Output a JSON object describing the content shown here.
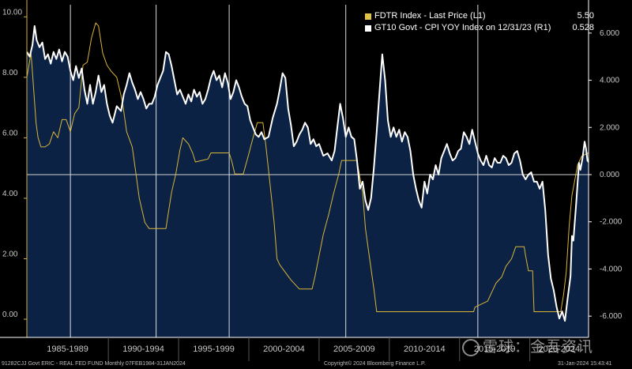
{
  "chart_data": {
    "type": "line",
    "legend": [
      {
        "name": "FDTR Index - Last Price (L1)",
        "value": "5.50",
        "color": "#e0c14a"
      },
      {
        "name": "GT10 Govt - CPI YOY Index on 12/31/23 (R1)",
        "value": "0.528",
        "color": "#ffffff"
      }
    ],
    "left_axis": {
      "ticks": [
        "0.00",
        "2.00",
        "4.00",
        "6.00",
        "8.00",
        "10.00"
      ],
      "ylim": [
        -0.6,
        10.4
      ]
    },
    "right_axis": {
      "ticks": [
        "-6.000",
        "-4.000",
        "-2.000",
        "0.000",
        "2.000",
        "4.000",
        "6.000"
      ],
      "ylim": [
        -6.9,
        7.2
      ]
    },
    "xlim": [
      1984.1,
      2024.08
    ],
    "period_labels": [
      "1985-1989",
      "1990-1994",
      "1995-1999",
      "2000-2004",
      "2005-2009",
      "2010-2014",
      "2015-2019",
      "2020-2024"
    ],
    "period_boundaries": [
      1987.2,
      1993.3,
      1998.5,
      2006.8,
      2016.2
    ],
    "zero_line_right": 0,
    "series": [
      {
        "name": "FDTR Index - Last Price (L1)",
        "axis": "left",
        "color": "#d9b53a",
        "points": [
          [
            1984.1,
            8.0
          ],
          [
            1984.4,
            8.8
          ],
          [
            1984.6,
            7.5
          ],
          [
            1984.75,
            6.5
          ],
          [
            1984.9,
            6.0
          ],
          [
            1985.1,
            5.7
          ],
          [
            1985.4,
            5.7
          ],
          [
            1985.7,
            5.8
          ],
          [
            1986.0,
            6.2
          ],
          [
            1986.3,
            6.0
          ],
          [
            1986.6,
            6.6
          ],
          [
            1986.9,
            6.6
          ],
          [
            1987.2,
            6.2
          ],
          [
            1987.5,
            6.8
          ],
          [
            1987.8,
            7.0
          ],
          [
            1988.1,
            8.4
          ],
          [
            1988.4,
            8.5
          ],
          [
            1988.7,
            9.3
          ],
          [
            1989.0,
            9.8
          ],
          [
            1989.2,
            9.7
          ],
          [
            1989.5,
            8.8
          ],
          [
            1989.8,
            8.4
          ],
          [
            1990.1,
            8.2
          ],
          [
            1990.5,
            8.0
          ],
          [
            1990.9,
            7.2
          ],
          [
            1991.2,
            6.2
          ],
          [
            1991.6,
            5.7
          ],
          [
            1991.9,
            4.7
          ],
          [
            1992.1,
            4.0
          ],
          [
            1992.5,
            3.2
          ],
          [
            1992.8,
            3.0
          ],
          [
            1993.5,
            3.0
          ],
          [
            1994.0,
            3.0
          ],
          [
            1994.1,
            3.3
          ],
          [
            1994.4,
            4.2
          ],
          [
            1994.7,
            4.8
          ],
          [
            1995.0,
            5.6
          ],
          [
            1995.2,
            6.0
          ],
          [
            1995.6,
            5.8
          ],
          [
            1995.9,
            5.5
          ],
          [
            1996.1,
            5.2
          ],
          [
            1997.0,
            5.3
          ],
          [
            1997.2,
            5.5
          ],
          [
            1998.5,
            5.5
          ],
          [
            1998.7,
            5.2
          ],
          [
            1998.9,
            4.8
          ],
          [
            1999.5,
            4.8
          ],
          [
            1999.8,
            5.3
          ],
          [
            2000.2,
            6.0
          ],
          [
            2000.5,
            6.5
          ],
          [
            2000.9,
            6.5
          ],
          [
            2001.1,
            5.8
          ],
          [
            2001.4,
            4.5
          ],
          [
            2001.7,
            3.2
          ],
          [
            2001.9,
            2.0
          ],
          [
            2002.1,
            1.8
          ],
          [
            2002.9,
            1.3
          ],
          [
            2003.5,
            1.0
          ],
          [
            2004.4,
            1.0
          ],
          [
            2004.6,
            1.4
          ],
          [
            2004.9,
            2.1
          ],
          [
            2005.2,
            2.8
          ],
          [
            2005.6,
            3.5
          ],
          [
            2005.9,
            4.1
          ],
          [
            2006.3,
            4.8
          ],
          [
            2006.5,
            5.25
          ],
          [
            2007.6,
            5.25
          ],
          [
            2007.8,
            4.7
          ],
          [
            2008.0,
            4.2
          ],
          [
            2008.2,
            3.0
          ],
          [
            2008.5,
            2.0
          ],
          [
            2008.8,
            1.0
          ],
          [
            2009.0,
            0.25
          ],
          [
            2015.9,
            0.25
          ],
          [
            2016.0,
            0.4
          ],
          [
            2016.9,
            0.6
          ],
          [
            2017.2,
            0.9
          ],
          [
            2017.5,
            1.2
          ],
          [
            2017.9,
            1.4
          ],
          [
            2018.2,
            1.75
          ],
          [
            2018.6,
            2.0
          ],
          [
            2018.9,
            2.4
          ],
          [
            2019.5,
            2.4
          ],
          [
            2019.6,
            2.1
          ],
          [
            2019.8,
            1.6
          ],
          [
            2020.1,
            1.6
          ],
          [
            2020.2,
            0.25
          ],
          [
            2022.1,
            0.25
          ],
          [
            2022.3,
            0.8
          ],
          [
            2022.5,
            1.6
          ],
          [
            2022.7,
            3.1
          ],
          [
            2022.9,
            4.1
          ],
          [
            2023.1,
            4.6
          ],
          [
            2023.3,
            5.1
          ],
          [
            2023.6,
            5.4
          ],
          [
            2024.08,
            5.5
          ]
        ]
      },
      {
        "name": "GT10 Govt - CPI YOY Index on 12/31/23 (R1)",
        "axis": "right",
        "color": "#ffffff",
        "points": [
          [
            1984.1,
            5.2
          ],
          [
            1984.3,
            5.0
          ],
          [
            1984.5,
            5.5
          ],
          [
            1984.65,
            6.3
          ],
          [
            1984.8,
            5.7
          ],
          [
            1985.0,
            5.4
          ],
          [
            1985.2,
            5.6
          ],
          [
            1985.4,
            4.9
          ],
          [
            1985.6,
            5.1
          ],
          [
            1985.8,
            4.7
          ],
          [
            1986.0,
            5.2
          ],
          [
            1986.2,
            4.9
          ],
          [
            1986.4,
            5.3
          ],
          [
            1986.6,
            4.8
          ],
          [
            1986.8,
            5.2
          ],
          [
            1987.0,
            5.0
          ],
          [
            1987.2,
            4.4
          ],
          [
            1987.4,
            4.0
          ],
          [
            1987.6,
            4.6
          ],
          [
            1987.8,
            4.1
          ],
          [
            1988.0,
            4.5
          ],
          [
            1988.2,
            3.6
          ],
          [
            1988.4,
            3.0
          ],
          [
            1988.6,
            3.8
          ],
          [
            1988.8,
            3.0
          ],
          [
            1989.0,
            3.5
          ],
          [
            1989.2,
            4.2
          ],
          [
            1989.4,
            3.5
          ],
          [
            1989.6,
            3.8
          ],
          [
            1989.8,
            3.0
          ],
          [
            1990.0,
            2.5
          ],
          [
            1990.2,
            2.2
          ],
          [
            1990.5,
            2.9
          ],
          [
            1990.8,
            2.7
          ],
          [
            1991.0,
            3.4
          ],
          [
            1991.2,
            3.8
          ],
          [
            1991.4,
            4.3
          ],
          [
            1991.6,
            3.9
          ],
          [
            1991.8,
            3.6
          ],
          [
            1992.0,
            3.2
          ],
          [
            1992.2,
            3.5
          ],
          [
            1992.4,
            3.2
          ],
          [
            1992.6,
            2.8
          ],
          [
            1992.8,
            3.0
          ],
          [
            1993.0,
            3.0
          ],
          [
            1993.2,
            3.3
          ],
          [
            1993.4,
            3.8
          ],
          [
            1993.6,
            4.1
          ],
          [
            1993.8,
            4.4
          ],
          [
            1994.0,
            5.2
          ],
          [
            1994.2,
            5.1
          ],
          [
            1994.4,
            4.6
          ],
          [
            1994.6,
            4.0
          ],
          [
            1994.8,
            3.4
          ],
          [
            1995.0,
            3.6
          ],
          [
            1995.2,
            3.3
          ],
          [
            1995.4,
            3.0
          ],
          [
            1995.6,
            3.4
          ],
          [
            1995.8,
            3.1
          ],
          [
            1996.0,
            3.6
          ],
          [
            1996.2,
            3.3
          ],
          [
            1996.4,
            3.5
          ],
          [
            1996.6,
            3.0
          ],
          [
            1996.8,
            3.2
          ],
          [
            1997.0,
            3.6
          ],
          [
            1997.2,
            4.1
          ],
          [
            1997.4,
            4.4
          ],
          [
            1997.6,
            4.0
          ],
          [
            1997.8,
            4.2
          ],
          [
            1998.0,
            3.7
          ],
          [
            1998.2,
            4.3
          ],
          [
            1998.4,
            3.9
          ],
          [
            1998.6,
            3.2
          ],
          [
            1998.8,
            3.5
          ],
          [
            1999.0,
            4.0
          ],
          [
            1999.2,
            3.7
          ],
          [
            1999.4,
            3.3
          ],
          [
            1999.6,
            3.0
          ],
          [
            1999.8,
            2.9
          ],
          [
            2000.0,
            2.3
          ],
          [
            2000.2,
            2.0
          ],
          [
            2000.4,
            1.7
          ],
          [
            2000.6,
            1.6
          ],
          [
            2000.8,
            1.8
          ],
          [
            2001.0,
            1.5
          ],
          [
            2001.3,
            1.6
          ],
          [
            2001.6,
            2.4
          ],
          [
            2001.9,
            3.0
          ],
          [
            2002.1,
            3.6
          ],
          [
            2002.3,
            4.3
          ],
          [
            2002.5,
            4.1
          ],
          [
            2002.7,
            2.8
          ],
          [
            2002.9,
            2.1
          ],
          [
            2003.1,
            1.2
          ],
          [
            2003.3,
            1.4
          ],
          [
            2003.5,
            1.7
          ],
          [
            2003.7,
            1.9
          ],
          [
            2003.9,
            2.2
          ],
          [
            2004.1,
            2.0
          ],
          [
            2004.3,
            1.3
          ],
          [
            2004.5,
            1.5
          ],
          [
            2004.7,
            1.2
          ],
          [
            2004.9,
            1.3
          ],
          [
            2005.2,
            0.8
          ],
          [
            2005.5,
            0.9
          ],
          [
            2005.8,
            0.6
          ],
          [
            2006.0,
            1.0
          ],
          [
            2006.2,
            2.0
          ],
          [
            2006.4,
            3.0
          ],
          [
            2006.6,
            2.4
          ],
          [
            2006.8,
            1.6
          ],
          [
            2007.0,
            2.0
          ],
          [
            2007.2,
            1.6
          ],
          [
            2007.4,
            1.5
          ],
          [
            2007.6,
            0.6
          ],
          [
            2007.8,
            -0.6
          ],
          [
            2008.0,
            -0.3
          ],
          [
            2008.2,
            -1.1
          ],
          [
            2008.4,
            -1.5
          ],
          [
            2008.6,
            -1.0
          ],
          [
            2008.8,
            0.3
          ],
          [
            2009.0,
            1.8
          ],
          [
            2009.2,
            3.5
          ],
          [
            2009.4,
            5.1
          ],
          [
            2009.6,
            4.0
          ],
          [
            2009.8,
            2.3
          ],
          [
            2010.0,
            1.6
          ],
          [
            2010.2,
            2.0
          ],
          [
            2010.4,
            1.6
          ],
          [
            2010.6,
            1.9
          ],
          [
            2010.8,
            1.4
          ],
          [
            2011.0,
            1.8
          ],
          [
            2011.2,
            1.6
          ],
          [
            2011.4,
            1.0
          ],
          [
            2011.6,
            0.0
          ],
          [
            2011.8,
            -0.6
          ],
          [
            2012.0,
            -1.1
          ],
          [
            2012.2,
            -1.4
          ],
          [
            2012.4,
            -0.3
          ],
          [
            2012.6,
            -0.8
          ],
          [
            2012.8,
            0.0
          ],
          [
            2013.0,
            -0.2
          ],
          [
            2013.2,
            0.4
          ],
          [
            2013.4,
            0.0
          ],
          [
            2013.6,
            0.7
          ],
          [
            2013.8,
            1.0
          ],
          [
            2014.0,
            1.3
          ],
          [
            2014.2,
            0.9
          ],
          [
            2014.4,
            0.6
          ],
          [
            2014.6,
            0.7
          ],
          [
            2014.8,
            1.0
          ],
          [
            2015.0,
            1.1
          ],
          [
            2015.2,
            1.8
          ],
          [
            2015.4,
            1.6
          ],
          [
            2015.6,
            1.3
          ],
          [
            2015.8,
            1.9
          ],
          [
            2016.0,
            1.4
          ],
          [
            2016.2,
            0.9
          ],
          [
            2016.4,
            0.6
          ],
          [
            2016.6,
            0.4
          ],
          [
            2016.8,
            0.8
          ],
          [
            2017.0,
            0.4
          ],
          [
            2017.2,
            0.3
          ],
          [
            2017.4,
            0.7
          ],
          [
            2017.6,
            0.5
          ],
          [
            2017.8,
            0.5
          ],
          [
            2018.0,
            0.8
          ],
          [
            2018.2,
            0.7
          ],
          [
            2018.4,
            0.4
          ],
          [
            2018.6,
            0.5
          ],
          [
            2018.8,
            0.9
          ],
          [
            2019.0,
            1.0
          ],
          [
            2019.2,
            0.6
          ],
          [
            2019.4,
            0.0
          ],
          [
            2019.6,
            -0.2
          ],
          [
            2019.8,
            0.0
          ],
          [
            2020.0,
            0.1
          ],
          [
            2020.2,
            -0.3
          ],
          [
            2020.4,
            -0.3
          ],
          [
            2020.6,
            -0.6
          ],
          [
            2020.8,
            -0.3
          ],
          [
            2021.0,
            -1.5
          ],
          [
            2021.2,
            -3.4
          ],
          [
            2021.4,
            -4.4
          ],
          [
            2021.6,
            -4.9
          ],
          [
            2021.8,
            -5.6
          ],
          [
            2022.0,
            -6.1
          ],
          [
            2022.2,
            -5.8
          ],
          [
            2022.4,
            -6.2
          ],
          [
            2022.6,
            -5.2
          ],
          [
            2022.8,
            -4.3
          ],
          [
            2022.9,
            -2.6
          ],
          [
            2023.0,
            -2.8
          ],
          [
            2023.2,
            -1.2
          ],
          [
            2023.4,
            0.5
          ],
          [
            2023.5,
            0.2
          ],
          [
            2023.65,
            0.7
          ],
          [
            2023.8,
            1.4
          ],
          [
            2023.9,
            1.1
          ],
          [
            2024.0,
            0.6
          ],
          [
            2024.08,
            0.53
          ]
        ]
      }
    ]
  },
  "footer": {
    "left": "91282CJJ Govt ERIC - REAL FED FUND  Monthly 07FEB1984-31JAN2024",
    "center": "Copyright© 2024 Bloomberg Finance L.P.",
    "right": "31-Jan-2024 15:43:41"
  },
  "watermark": "雪球：金吾资讯"
}
